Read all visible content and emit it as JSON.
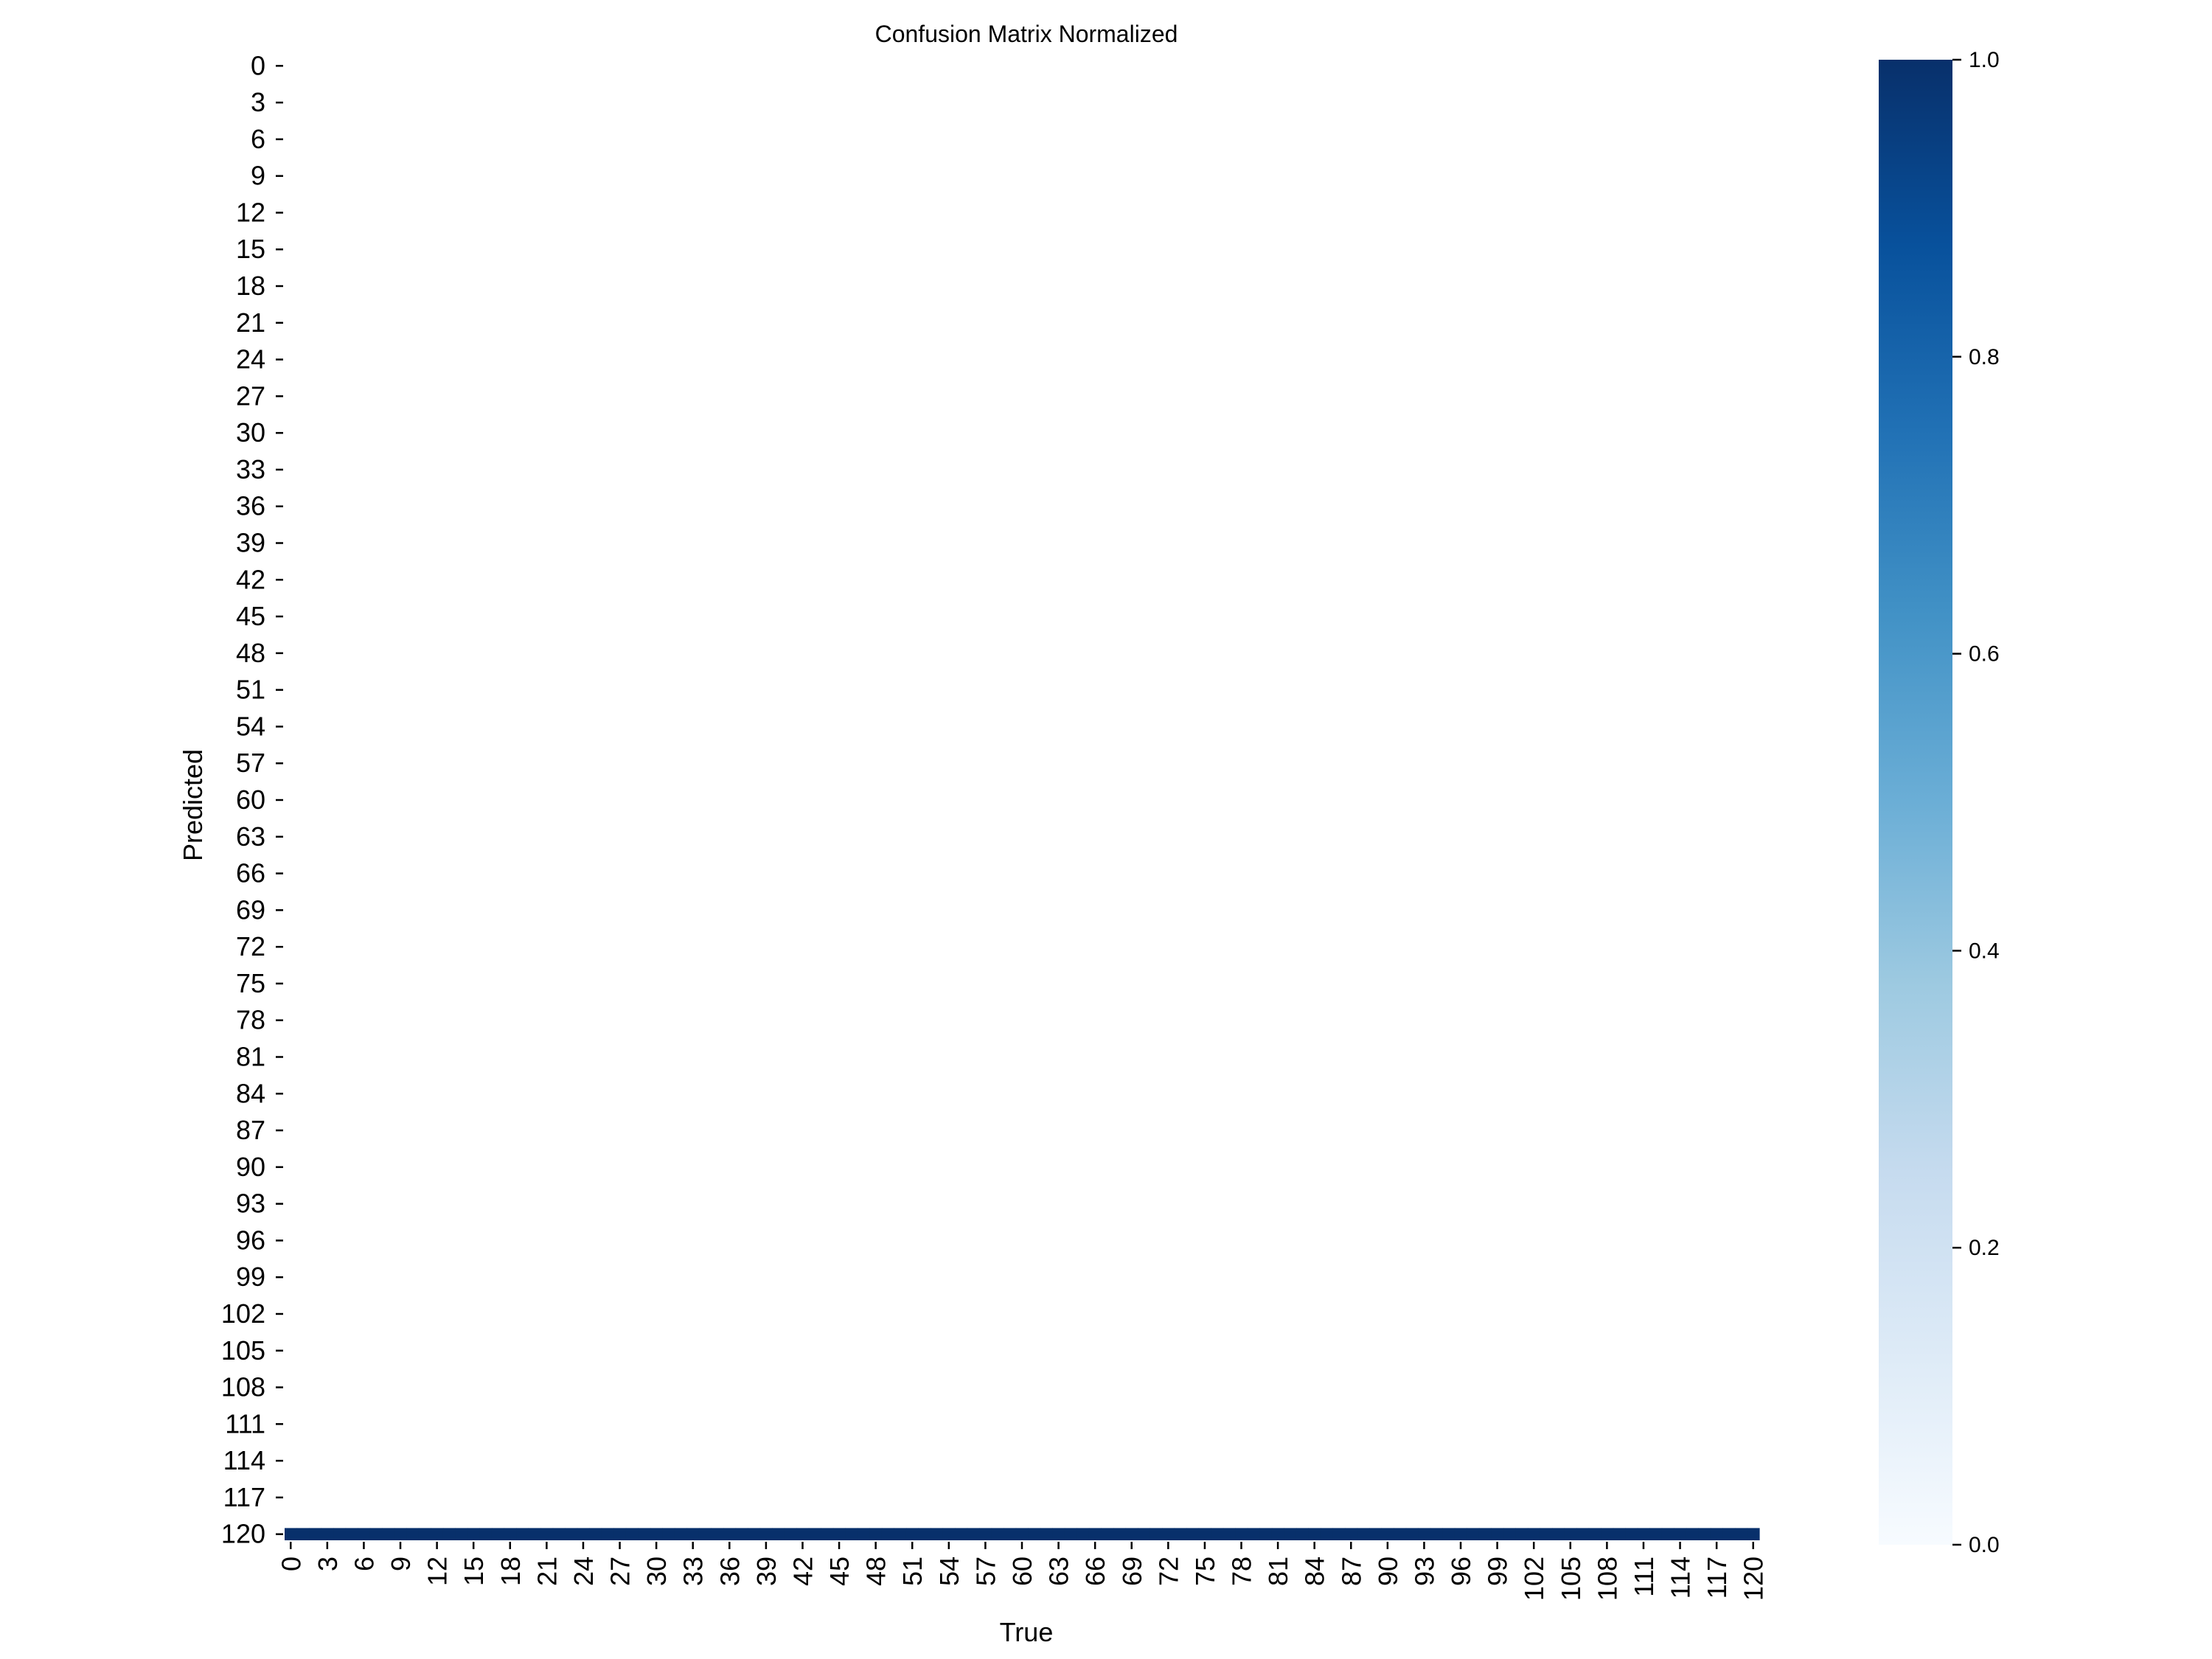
{
  "chart_data": {
    "type": "heatmap",
    "title": "Confusion Matrix Normalized",
    "xlabel": "True",
    "ylabel": "Predicted",
    "n_classes": 121,
    "tick_step": 3,
    "x_tick_labels": [
      "0",
      "3",
      "6",
      "9",
      "12",
      "15",
      "18",
      "21",
      "24",
      "27",
      "30",
      "33",
      "36",
      "39",
      "42",
      "45",
      "48",
      "51",
      "54",
      "57",
      "60",
      "63",
      "66",
      "69",
      "72",
      "75",
      "78",
      "81",
      "84",
      "87",
      "90",
      "93",
      "96",
      "99",
      "102",
      "105",
      "108",
      "111",
      "114",
      "117",
      "120"
    ],
    "y_tick_labels": [
      "0",
      "3",
      "6",
      "9",
      "12",
      "15",
      "18",
      "21",
      "24",
      "27",
      "30",
      "33",
      "36",
      "39",
      "42",
      "45",
      "48",
      "51",
      "54",
      "57",
      "60",
      "63",
      "66",
      "69",
      "72",
      "75",
      "78",
      "81",
      "84",
      "87",
      "90",
      "93",
      "96",
      "99",
      "102",
      "105",
      "108",
      "111",
      "114",
      "117",
      "120"
    ],
    "cells": {
      "description_of_values": "All true-class columns 0-120 have normalized value 1.0 in predicted row 120 (background); all other cells are 0 / blank.",
      "predicted_row": 120,
      "true_cols": [
        0,
        120
      ],
      "value": 1.0
    },
    "colorbar": {
      "cmap": "Blues",
      "vmin": 0.0,
      "vmax": 1.0,
      "tick_labels": [
        "0.0",
        "0.2",
        "0.4",
        "0.6",
        "0.8",
        "1.0"
      ],
      "tick_values": [
        0.0,
        0.2,
        0.4,
        0.6,
        0.8,
        1.0
      ]
    },
    "grid": false,
    "colors": {
      "cell_full": "#08306b",
      "cmap_stops": [
        "#f7fbff",
        "#deebf7",
        "#c6dbef",
        "#9ecae1",
        "#6baed6",
        "#4292c6",
        "#2171b5",
        "#08519c",
        "#08306b"
      ]
    }
  }
}
